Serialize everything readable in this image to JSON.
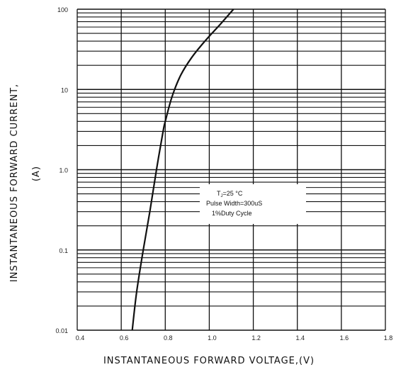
{
  "chart_data": {
    "type": "line",
    "x_axis": {
      "label": "INSTANTANEOUS FORWARD VOLTAGE,(V)",
      "min": 0.4,
      "max": 1.8,
      "ticks": [
        "0.4",
        "0.6",
        "0.8",
        "1.0",
        "1.2",
        "1.4",
        "1.6",
        "1.8"
      ],
      "tick_values": [
        0.4,
        0.6,
        0.8,
        1.0,
        1.2,
        1.4,
        1.6,
        1.8
      ]
    },
    "y_axis": {
      "label_line1": "INSTANTANEOUS FORWARD CURRENT,",
      "label_line2": "(A)",
      "scale": "log",
      "min": 0.01,
      "max": 100,
      "ticks": [
        "0.01",
        "0.1",
        "1.0",
        "10",
        "100"
      ],
      "tick_values": [
        0.01,
        0.1,
        1,
        10,
        100
      ]
    },
    "grid": true,
    "annotation": {
      "line1_main": "T",
      "line1_sub": "J",
      "line1_rest": "=25 °C",
      "line2": "Pulse Width=300uS",
      "line3": "1%Duty Cycle"
    },
    "series": [
      {
        "x": [
          0.65,
          0.67,
          0.7,
          0.73,
          0.76,
          0.79,
          0.8,
          0.83,
          0.87,
          0.92,
          0.98,
          1.05,
          1.11
        ],
        "y": [
          0.01,
          0.03,
          0.1,
          0.3,
          1.0,
          3.0,
          4.0,
          8.0,
          15.0,
          25.0,
          40.0,
          65.0,
          100.0
        ]
      }
    ]
  }
}
